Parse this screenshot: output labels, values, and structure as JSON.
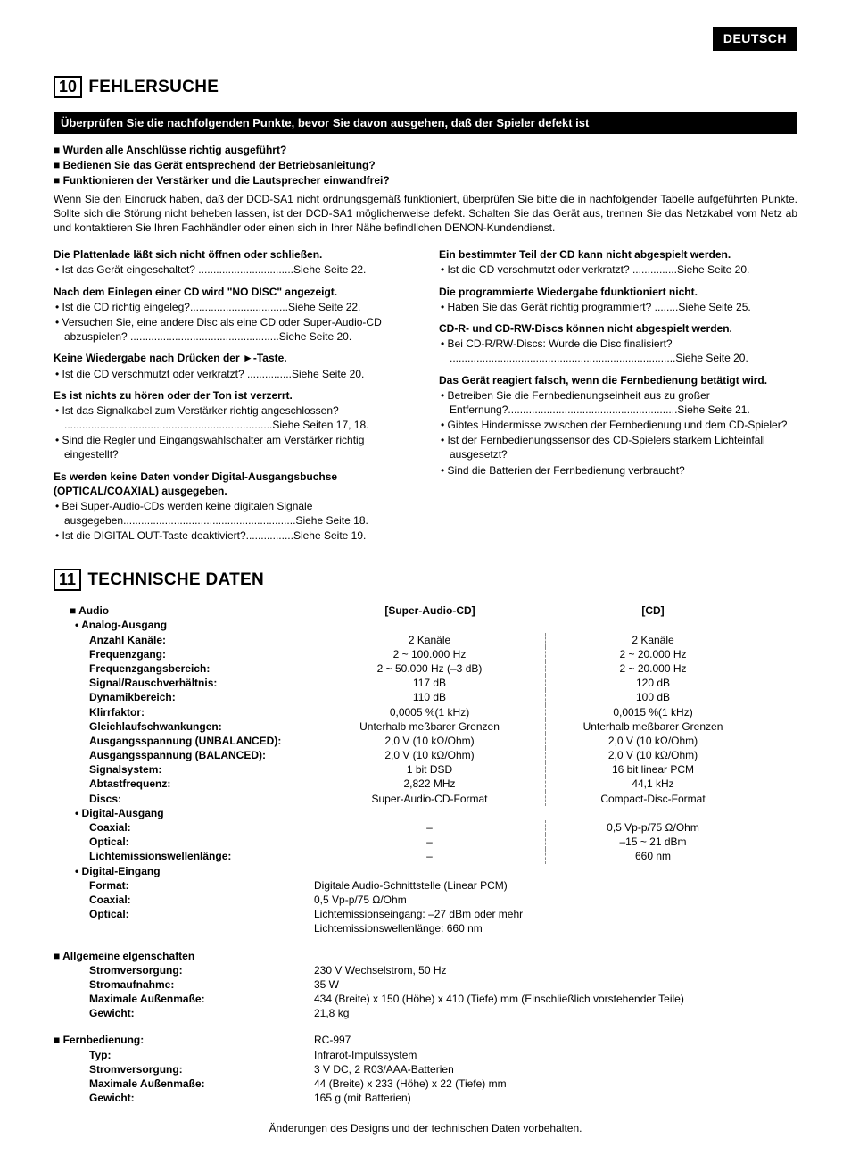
{
  "lang_badge": "DEUTSCH",
  "s10": {
    "num": "10",
    "title": "FEHLERSUCHE",
    "bar": "Überprüfen Sie die nachfolgenden Punkte, bevor Sie davon ausgehen, daß der Spieler defekt ist",
    "checks": [
      "Wurden alle Anschlüsse richtig ausgeführt?",
      "Bedienen Sie das Gerät entsprechend der Betriebsanleitung?",
      "Funktionieren der Verstärker und die Lautsprecher einwandfrei?"
    ],
    "intro": "Wenn Sie den Eindruck haben, daß der DCD-SA1 nicht ordnungsgemäß funktioniert, überprüfen Sie bitte die in nachfolgender Tabelle aufgeführten Punkte. Sollte sich die Störung nicht beheben lassen, ist der DCD-SA1 möglicherweise defekt. Schalten Sie das Gerät aus, trennen Sie das Netzkabel vom Netz ab und kontaktieren Sie Ihren Fachhändler oder einen sich in Ihrer Nähe befindlichen DENON-Kundendienst.",
    "left": [
      {
        "t": "Die Plattenlade läßt sich nicht öffnen oder schließen.",
        "b": [
          "Ist das Gerät eingeschaltet? ................................Siehe Seite 22."
        ]
      },
      {
        "t": "Nach dem Einlegen einer CD wird \"NO DISC\" angezeigt.",
        "b": [
          "Ist die CD richtig eingeleg?.................................Siehe Seite 22.",
          "Versuchen Sie, eine andere Disc als eine CD oder Super-Audio-CD abzuspielen? ..................................................Siehe Seite 20."
        ]
      },
      {
        "t": "Keine Wiedergabe nach Drücken der ►-Taste.",
        "b": [
          "Ist die CD verschmutzt oder verkratzt? ...............Siehe Seite 20."
        ]
      },
      {
        "t": "Es ist nichts zu hören oder der Ton ist verzerrt.",
        "b": [
          "Ist das Signalkabel zum Verstärker richtig angeschlossen?\n......................................................................Siehe Seiten 17, 18.",
          "Sind die Regler und Eingangswahlschalter am Verstärker richtig eingestellt?"
        ]
      },
      {
        "t": "Es werden keine Daten vonder Digital-Ausgangsbuchse (OPTICAL/COAXIAL) ausgegeben.",
        "b": [
          "Bei Super-Audio-CDs werden keine digitalen Signale ausgegeben..........................................................Siehe Seite 18.",
          "Ist die DIGITAL OUT-Taste deaktiviert?................Siehe Seite 19."
        ]
      }
    ],
    "right": [
      {
        "t": "Ein bestimmter Teil der CD kann nicht abgespielt werden.",
        "b": [
          "Ist die CD verschmutzt oder verkratzt? ...............Siehe Seite 20."
        ]
      },
      {
        "t": "Die programmierte Wiedergabe fdunktioniert nicht.",
        "b": [
          "Haben Sie das Gerät richtig programmiert? ........Siehe Seite 25."
        ]
      },
      {
        "t": "CD-R- und CD-RW-Discs können nicht abgespielt werden.",
        "b": [
          "Bei CD-R/RW-Discs: Wurde die Disc finalisiert?\n............................................................................Siehe Seite 20."
        ]
      },
      {
        "t": "Das Gerät reagiert falsch, wenn die Fernbedienung betätigt wird.",
        "b": [
          "Betreiben Sie die Fernbedienungseinheit aus zu großer Entfernung?.........................................................Siehe Seite 21.",
          "Gibtes Hindermisse zwischen der Fernbedienung und dem CD-Spieler?",
          "Ist der Fernbedienungssensor des CD-Spielers starkem Lichteinfall ausgesetzt?",
          "Sind die Batterien der Fernbedienung verbraucht?"
        ]
      }
    ]
  },
  "s11": {
    "num": "11",
    "title": "TECHNISCHE DATEN",
    "col_headers": {
      "c1": "[Super-Audio-CD]",
      "c2": "[CD]"
    },
    "audio_head": "Audio",
    "analog_head": "Analog-Ausgang",
    "analog_rows": [
      {
        "l": "Anzahl Kanäle:",
        "v1": "2 Kanäle",
        "v2": "2 Kanäle"
      },
      {
        "l": "Frequenzgang:",
        "v1": "2 ~ 100.000 Hz",
        "v2": "2 ~ 20.000 Hz"
      },
      {
        "l": "Frequenzgangsbereich:",
        "v1": "2 ~ 50.000 Hz (–3 dB)",
        "v2": "2 ~ 20.000 Hz"
      },
      {
        "l": "Signal/Rauschverhältnis:",
        "v1": "117 dB",
        "v2": "120 dB"
      },
      {
        "l": "Dynamikbereich:",
        "v1": "110 dB",
        "v2": "100 dB"
      },
      {
        "l": "Klirrfaktor:",
        "v1": "0,0005 %(1 kHz)",
        "v2": "0,0015 %(1 kHz)"
      },
      {
        "l": "Gleichlaufschwankungen:",
        "v1": "Unterhalb meßbarer Grenzen",
        "v2": "Unterhalb meßbarer Grenzen"
      },
      {
        "l": "Ausgangsspannung (UNBALANCED):",
        "v1": "2,0 V (10 kΩ/Ohm)",
        "v2": "2,0 V (10 kΩ/Ohm)"
      },
      {
        "l": "Ausgangsspannung (BALANCED):",
        "v1": "2,0 V (10 kΩ/Ohm)",
        "v2": "2,0 V (10 kΩ/Ohm)"
      },
      {
        "l": "Signalsystem:",
        "v1": "1 bit DSD",
        "v2": "16 bit linear PCM"
      },
      {
        "l": "Abtastfrequenz:",
        "v1": "2,822 MHz",
        "v2": "44,1 kHz"
      },
      {
        "l": "Discs:",
        "v1": "Super-Audio-CD-Format",
        "v2": "Compact-Disc-Format"
      }
    ],
    "digital_out_head": "Digital-Ausgang",
    "digital_out_rows": [
      {
        "l": "Coaxial:",
        "v1": "–",
        "v2": "0,5 Vp-p/75 Ω/Ohm"
      },
      {
        "l": "Optical:",
        "v1": "–",
        "v2": "–15 ~ 21 dBm"
      },
      {
        "l": "Lichtemissionswellenlänge:",
        "v1": "–",
        "v2": "660 nm"
      }
    ],
    "digital_in_head": "Digital-Eingang",
    "digital_in_rows": [
      {
        "l": "Format:",
        "v": "Digitale Audio-Schnittstelle (Linear PCM)"
      },
      {
        "l": "Coaxial:",
        "v": "0,5 Vp-p/75 Ω/Ohm"
      },
      {
        "l": "Optical:",
        "v": "Lichtemissionseingang: –27 dBm oder mehr"
      },
      {
        "l": "",
        "v": "Lichtemissionswellenlänge: 660 nm"
      }
    ],
    "general_head": "Allgemeine elgenschaften",
    "general_rows": [
      {
        "l": "Stromversorgung:",
        "v": "230 V Wechselstrom, 50 Hz"
      },
      {
        "l": "Stromaufnahme:",
        "v": "35 W"
      },
      {
        "l": "Maximale Außenmaße:",
        "v": "434 (Breite) x 150 (Höhe) x 410 (Tiefe) mm (Einschließlich vorstehender Teile)"
      },
      {
        "l": "Gewicht:",
        "v": "21,8 kg"
      }
    ],
    "remote_head": "Fernbedienung:",
    "remote_value": "RC-997",
    "remote_rows": [
      {
        "l": "Typ:",
        "v": "Infrarot-Impulssystem"
      },
      {
        "l": "Stromversorgung:",
        "v": "3 V DC, 2 R03/AAA-Batterien"
      },
      {
        "l": "Maximale Außenmaße:",
        "v": "44 (Breite) x 233 (Höhe) x 22 (Tiefe) mm"
      },
      {
        "l": "Gewicht:",
        "v": "165 g (mit Batterien)"
      }
    ],
    "footer": "Änderungen des Designs und der technischen Daten vorbehalten."
  }
}
